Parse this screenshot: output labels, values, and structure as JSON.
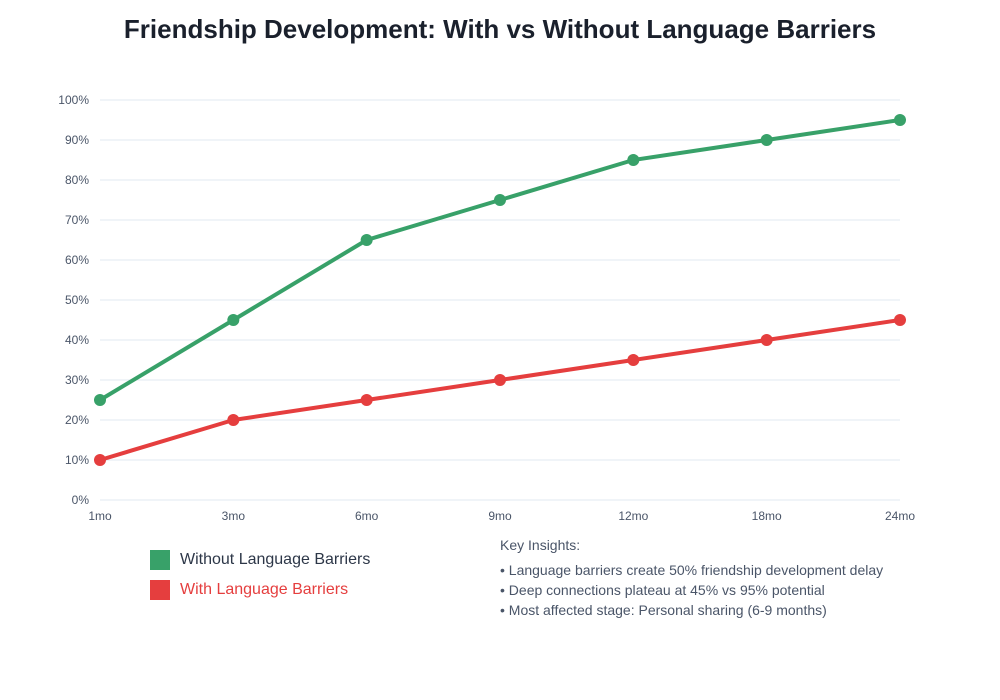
{
  "chart_data": {
    "type": "line",
    "title": "Friendship Development: With vs Without Language Barriers",
    "xlabel": "",
    "ylabel": "",
    "categories": [
      "1mo",
      "3mo",
      "6mo",
      "9mo",
      "12mo",
      "18mo",
      "24mo"
    ],
    "ylim": [
      0,
      100
    ],
    "yticks": [
      "0%",
      "10%",
      "20%",
      "30%",
      "40%",
      "50%",
      "60%",
      "70%",
      "80%",
      "90%",
      "100%"
    ],
    "grid": true,
    "legend_position": "bottom-left",
    "series": [
      {
        "name": "Without Language Barriers",
        "color": "#38a169",
        "values": [
          25,
          45,
          65,
          75,
          85,
          90,
          95
        ]
      },
      {
        "name": "With Language Barriers",
        "color": "#e53e3e",
        "values": [
          10,
          20,
          25,
          30,
          35,
          40,
          45
        ]
      }
    ]
  },
  "insights": {
    "heading": "Key Insights:",
    "items": [
      "• Language barriers create 50% friendship development delay",
      "• Deep connections plateau at 45% vs 95% potential",
      "• Most affected stage: Personal sharing (6-9 months)"
    ]
  }
}
